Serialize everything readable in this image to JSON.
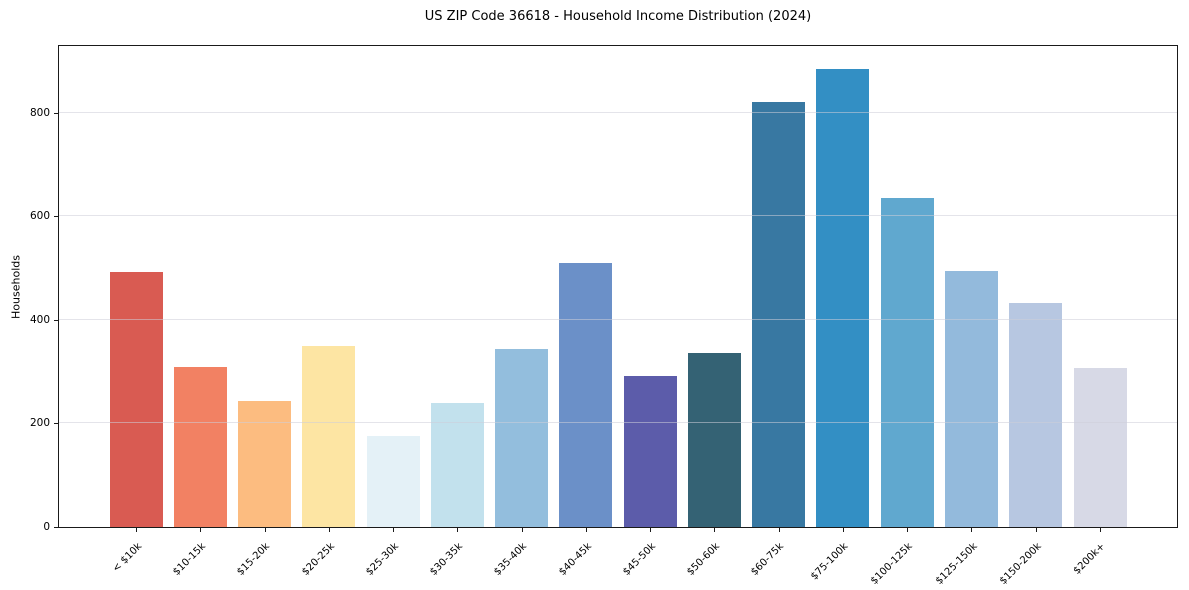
{
  "chart_data": {
    "type": "bar",
    "title": "US ZIP Code 36618 - Household Income Distribution (2024)",
    "xlabel": "",
    "ylabel": "Households",
    "categories": [
      "< $10k",
      "$10-15k",
      "$15-20k",
      "$20-25k",
      "$25-30k",
      "$30-35k",
      "$35-40k",
      "$40-45k",
      "$45-50k",
      "$50-60k",
      "$60-75k",
      "$75-100k",
      "$100-125k",
      "$125-150k",
      "$150-200k",
      "$200k+"
    ],
    "values": [
      493,
      310,
      244,
      350,
      176,
      240,
      344,
      510,
      292,
      336,
      820,
      885,
      635,
      494,
      432,
      307
    ],
    "bar_colors": [
      "#d95b52",
      "#f28163",
      "#fcbc80",
      "#fde5a3",
      "#e4f1f7",
      "#c2e1ed",
      "#93bedd",
      "#6b90c8",
      "#5c5caa",
      "#346274",
      "#3878a2",
      "#338fc4",
      "#60a8cf",
      "#93badc",
      "#b7c7e1",
      "#d7d9e6"
    ],
    "ylim": [
      0,
      929
    ],
    "yticks": [
      0,
      200,
      400,
      600,
      800
    ],
    "grid": "horizontal",
    "gridline_color": "rgba(205,205,216,0.55)",
    "axis_color": "#1a1a1a",
    "background": "#ffffff",
    "legend": "none"
  }
}
